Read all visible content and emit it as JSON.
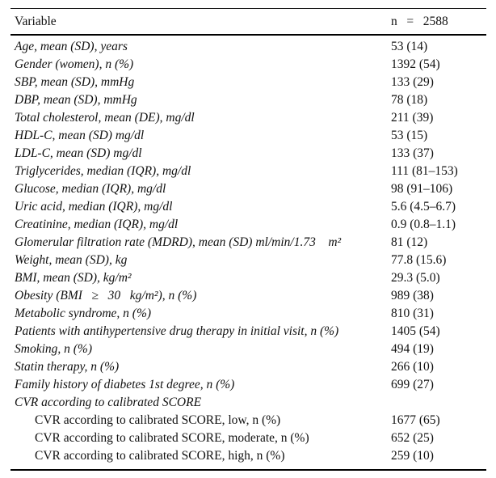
{
  "table": {
    "header": {
      "variable_label": "Variable",
      "count_label": "n   =   2588"
    },
    "rows": [
      {
        "label": "Age, mean (SD), years",
        "value": "53 (14)"
      },
      {
        "label": "Gender (women), n (%)",
        "value": "1392 (54)"
      },
      {
        "label": "SBP, mean (SD), mmHg",
        "value": "133 (29)"
      },
      {
        "label": "DBP, mean (SD), mmHg",
        "value": "78 (18)"
      },
      {
        "label": "Total cholesterol, mean (DE), mg/dl",
        "value": "211 (39)"
      },
      {
        "label": "HDL-C, mean (SD) mg/dl",
        "value": "53 (15)"
      },
      {
        "label": "LDL-C, mean (SD) mg/dl",
        "value": "133 (37)"
      },
      {
        "label": "Triglycerides, median (IQR), mg/dl",
        "value": "111 (81–153)"
      },
      {
        "label": "Glucose, median (IQR), mg/dl",
        "value": "98 (91–106)"
      },
      {
        "label": "Uric acid, median (IQR), mg/dl",
        "value": "5.6 (4.5–6.7)"
      },
      {
        "label": "Creatinine, median (IQR), mg/dl",
        "value": "0.9 (0.8–1.1)"
      },
      {
        "label": "Glomerular filtration rate (MDRD), mean (SD) ml/min/1.73    m²",
        "value": "81 (12)"
      },
      {
        "label": "Weight, mean (SD), kg",
        "value": "77.8 (15.6)"
      },
      {
        "label": "BMI, mean (SD), kg/m²",
        "value": "29.3 (5.0)"
      },
      {
        "label": "Obesity (BMI   ≥   30   kg/m²), n (%)",
        "value": "989 (38)"
      },
      {
        "label": "Metabolic syndrome, n (%)",
        "value": "810 (31)"
      },
      {
        "label": "Patients with antihypertensive drug therapy in initial visit, n (%)",
        "value": "1405 (54)"
      },
      {
        "label": "Smoking, n (%)",
        "value": "494 (19)"
      },
      {
        "label": "Statin therapy, n (%)",
        "value": "266 (10)"
      },
      {
        "label": "Family history of diabetes 1st degree, n (%)",
        "value": "699 (27)"
      },
      {
        "label": "CVR according to calibrated SCORE",
        "value": ""
      },
      {
        "label": "CVR according to calibrated SCORE, low, n (%)",
        "value": "1677 (65)",
        "indent": true,
        "roman": true
      },
      {
        "label": "CVR according to calibrated SCORE, moderate, n (%)",
        "value": "652 (25)",
        "indent": true,
        "roman": true
      },
      {
        "label": "CVR according to calibrated SCORE, high, n (%)",
        "value": "259 (10)",
        "indent": true,
        "roman": true
      }
    ]
  }
}
